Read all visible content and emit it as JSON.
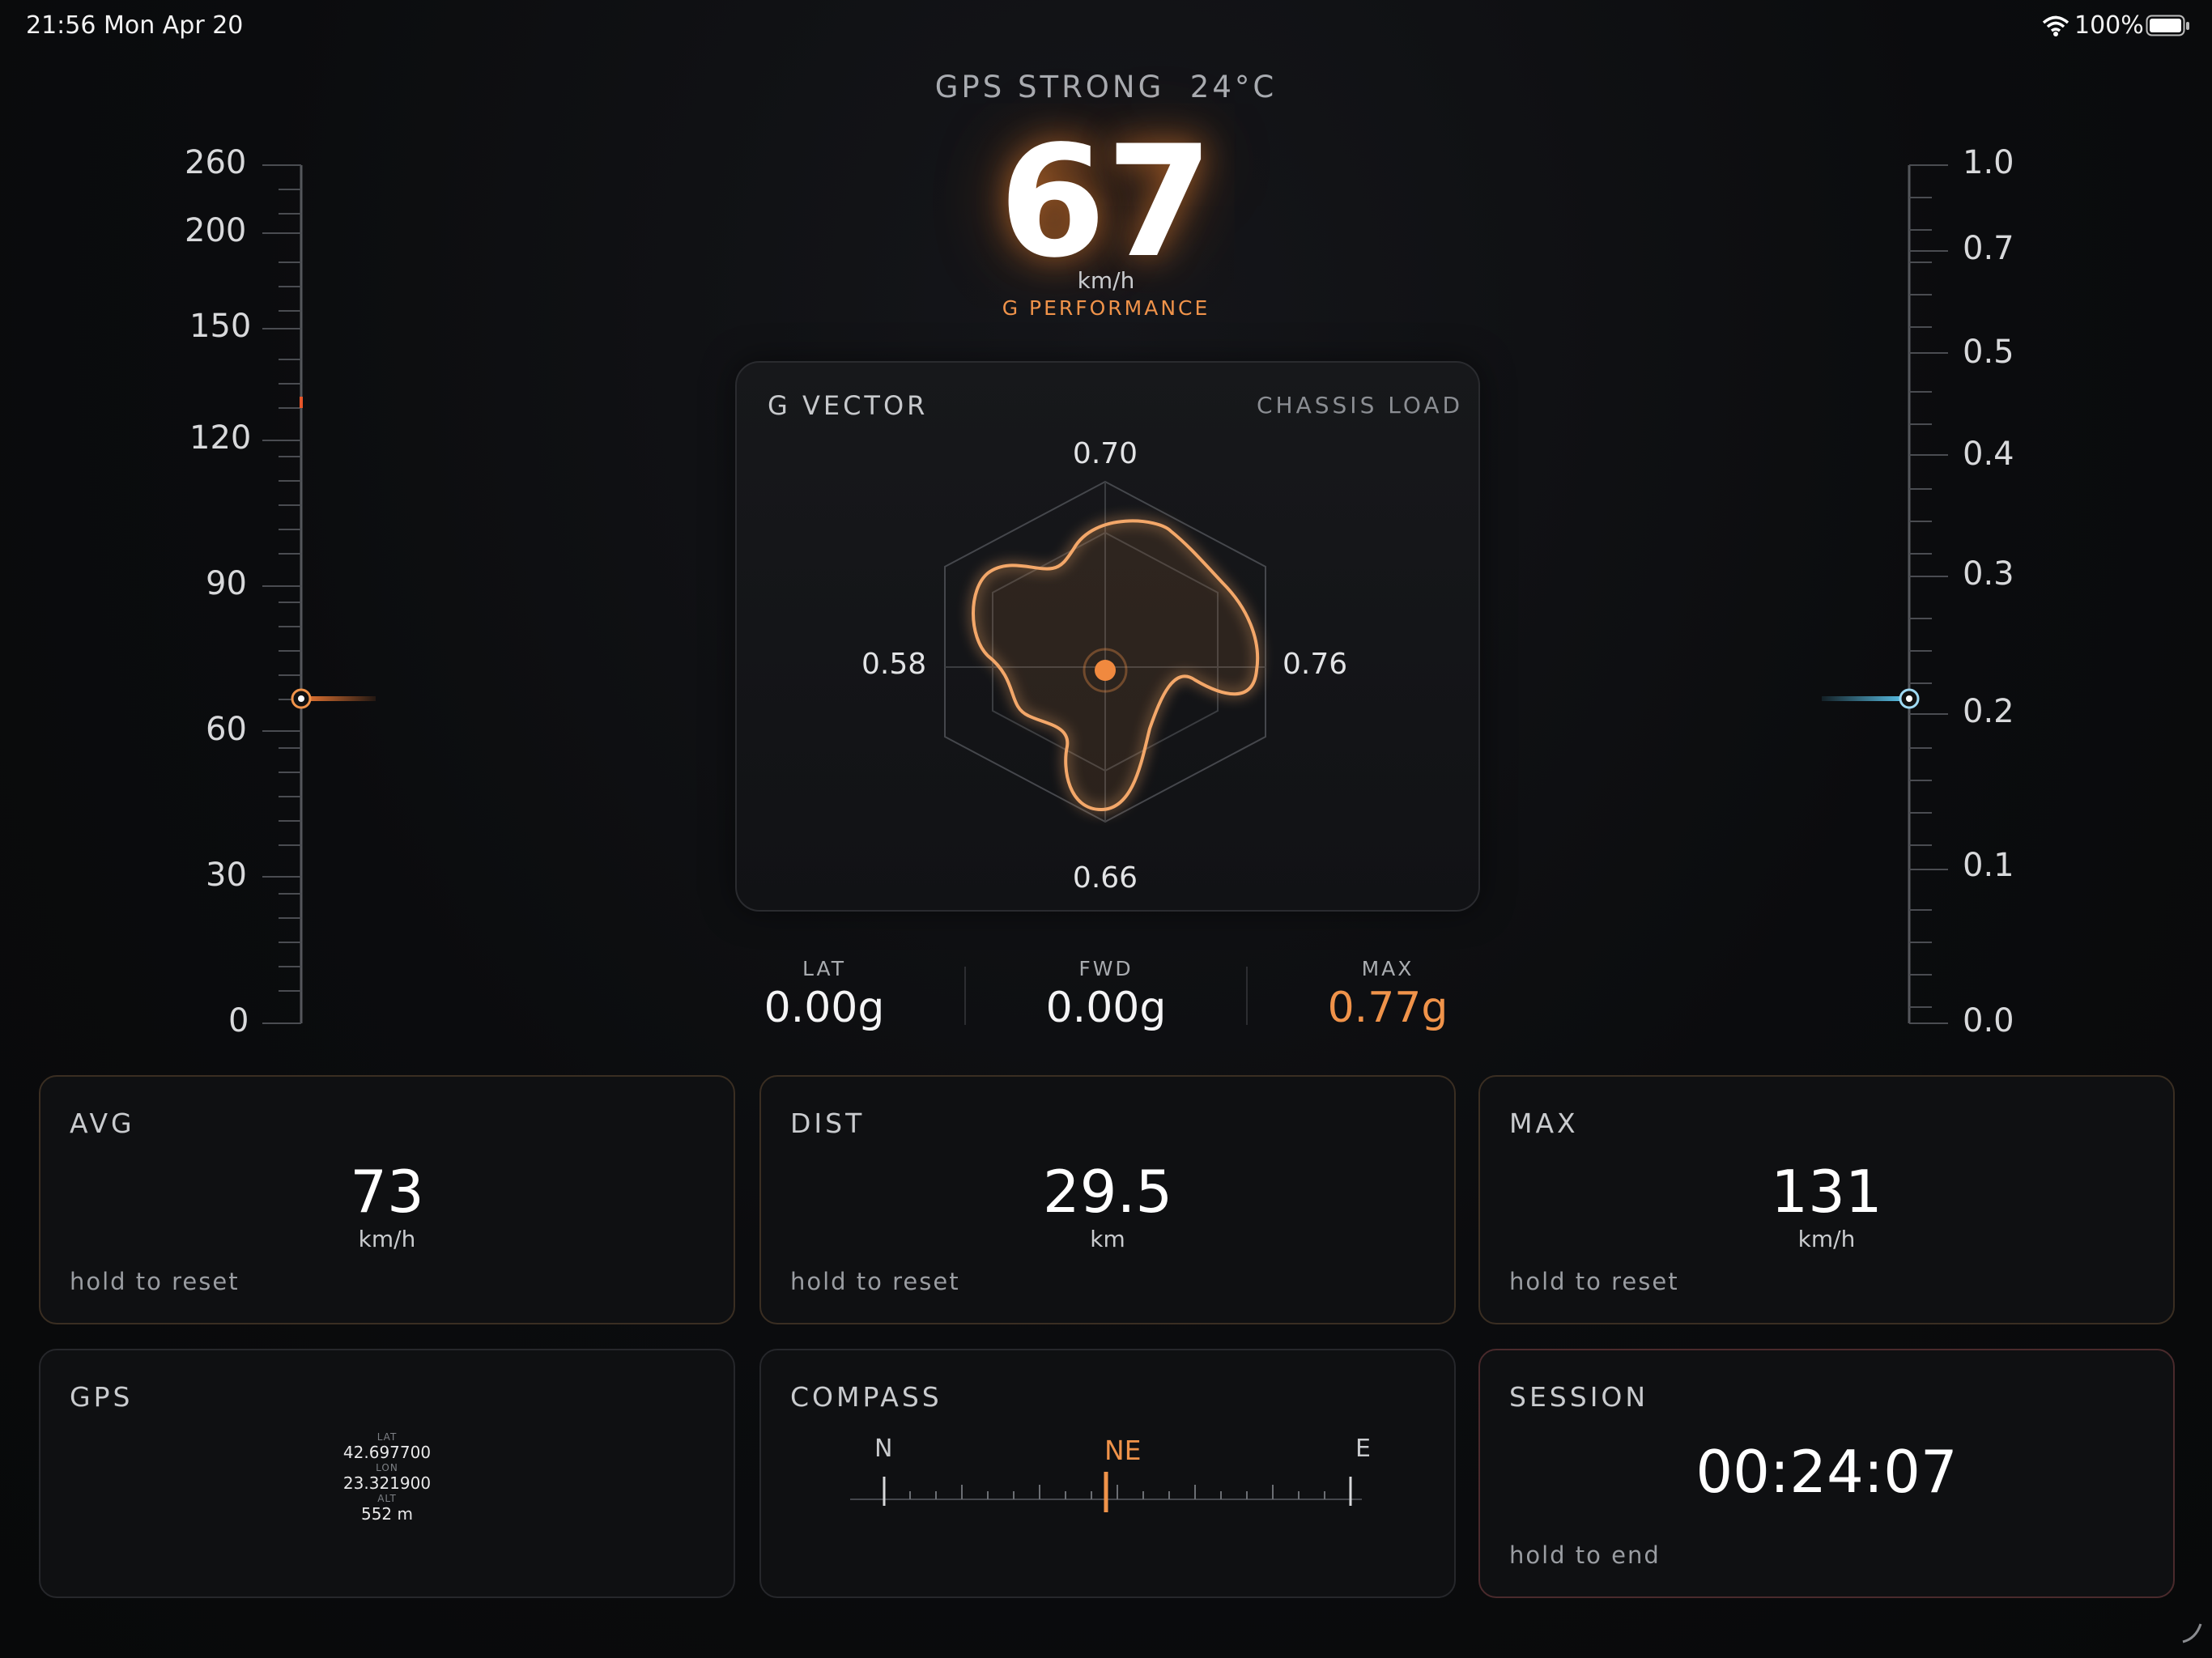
{
  "status_bar": {
    "time": "21:56",
    "date": "Mon Apr 20",
    "battery": "100%"
  },
  "header": {
    "gps_status": "GPS STRONG",
    "temperature": "24°C"
  },
  "speed": {
    "value": "67",
    "unit": "km/h",
    "mode": "G PERFORMANCE"
  },
  "left_gauge": {
    "ticks": [
      "260",
      "200",
      "150",
      "120",
      "90",
      "60",
      "30",
      "0"
    ],
    "value": 67
  },
  "right_gauge": {
    "ticks": [
      "1.0",
      "0.7",
      "0.5",
      "0.4",
      "0.3",
      "0.2",
      "0.1",
      "0.0"
    ],
    "value": 0.2
  },
  "g_vector": {
    "title": "G VECTOR",
    "subtitle": "CHASSIS LOAD",
    "top": "0.70",
    "right": "0.76",
    "bottom": "0.66",
    "left": "0.58"
  },
  "g_stats": [
    {
      "label": "LAT",
      "value": "0.00g"
    },
    {
      "label": "FWD",
      "value": "0.00g"
    },
    {
      "label": "MAX",
      "value": "0.77g"
    }
  ],
  "cards": {
    "avg": {
      "title": "AVG",
      "value": "73",
      "unit": "km/h",
      "hint": "hold to reset"
    },
    "dist": {
      "title": "DIST",
      "value": "29.5",
      "unit": "km",
      "hint": "hold to reset"
    },
    "max": {
      "title": "MAX",
      "value": "131",
      "unit": "km/h",
      "hint": "hold to reset"
    },
    "gps": {
      "title": "GPS",
      "lat_label": "LAT",
      "lat": "42.697700",
      "lon_label": "LON",
      "lon": "23.321900",
      "alt_label": "ALT",
      "alt": "552 m"
    },
    "compass": {
      "title": "COMPASS",
      "left": "N",
      "heading": "NE",
      "right": "E"
    },
    "session": {
      "title": "SESSION",
      "time": "00:24:07",
      "hint": "hold to end"
    }
  },
  "colors": {
    "accent_orange": "#f0934a",
    "accent_blue": "#5cc8f0"
  }
}
